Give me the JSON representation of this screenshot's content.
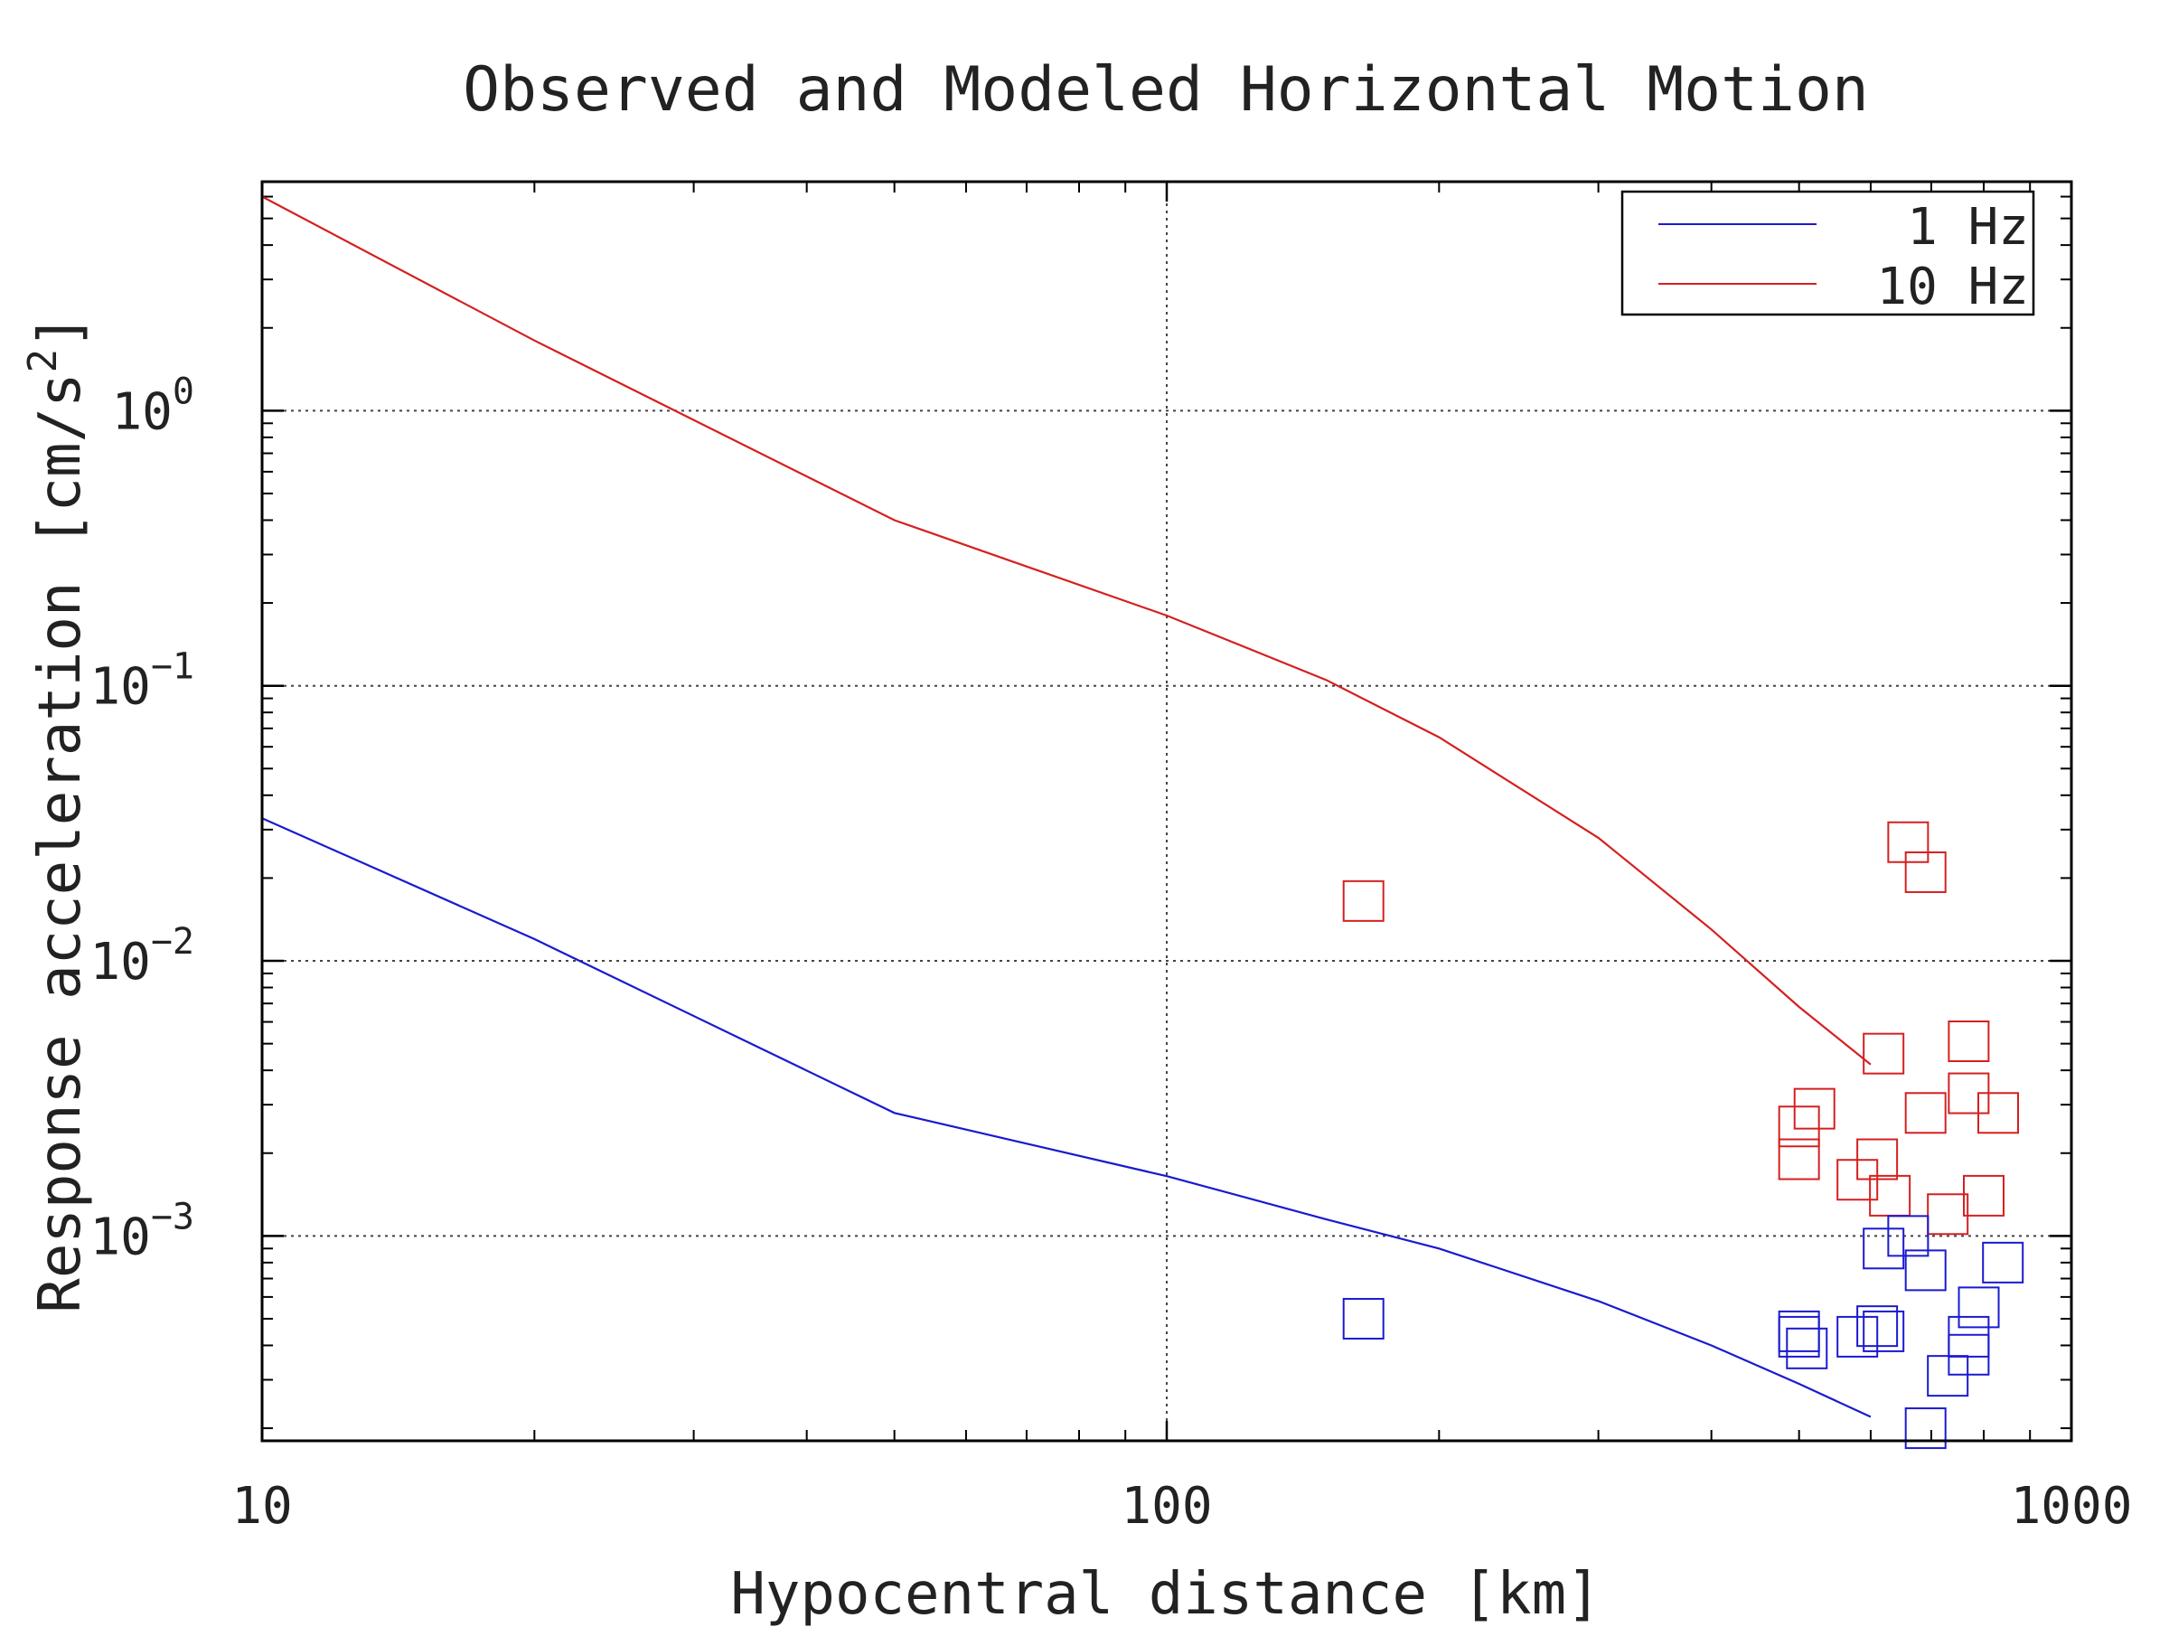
{
  "chart_data": {
    "type": "scatter",
    "title": "Observed and Modeled Horizontal Motion",
    "xlabel": "Hypocentral distance [km]",
    "ylabel": "Response acceleration [cm/s",
    "ylabel_superscript": "2",
    "ylabel_close": "]",
    "xscale": "log",
    "yscale": "log",
    "xlim": [
      10,
      1000
    ],
    "ylim": [
      0.00018,
      6.8
    ],
    "grid": true,
    "x_ticks": [
      {
        "value": 10,
        "label": "10"
      },
      {
        "value": 100,
        "label": "100"
      },
      {
        "value": 1000,
        "label": "1000"
      }
    ],
    "y_ticks": [
      {
        "value": 1,
        "base": "10",
        "exp": "0"
      },
      {
        "value": 0.1,
        "base": "10",
        "exp": "−1"
      },
      {
        "value": 0.01,
        "base": "10",
        "exp": "−2"
      },
      {
        "value": 0.001,
        "base": "10",
        "exp": "−3"
      }
    ],
    "legend": {
      "placement": "top-right",
      "entries": [
        {
          "label": "1 Hz",
          "color": "#1a1ad0"
        },
        {
          "label": "10 Hz",
          "color": "#d42020"
        }
      ]
    },
    "lines": [
      {
        "series": "10 Hz",
        "color": "#d42020",
        "x": [
          10,
          20,
          50,
          100,
          150,
          200,
          300,
          400,
          500,
          600
        ],
        "y": [
          6.0,
          1.8,
          0.4,
          0.18,
          0.105,
          0.065,
          0.028,
          0.013,
          0.0068,
          0.0042
        ]
      },
      {
        "series": "1 Hz",
        "color": "#1a1ad0",
        "x": [
          10,
          20,
          50,
          100,
          150,
          200,
          300,
          400,
          500,
          600
        ],
        "y": [
          0.033,
          0.012,
          0.0028,
          0.00165,
          0.00115,
          0.0009,
          0.00058,
          0.0004,
          0.00029,
          0.00022
        ]
      }
    ],
    "scatter": [
      {
        "series": "10 Hz",
        "color": "#d42020",
        "points": [
          [
            165,
            0.0165
          ],
          [
            660,
            0.027
          ],
          [
            690,
            0.021
          ],
          [
            620,
            0.0046
          ],
          [
            770,
            0.0051
          ],
          [
            500,
            0.0025
          ],
          [
            520,
            0.0029
          ],
          [
            500,
            0.0019
          ],
          [
            690,
            0.0028
          ],
          [
            770,
            0.0033
          ],
          [
            830,
            0.0028
          ],
          [
            610,
            0.0019
          ],
          [
            580,
            0.0016
          ],
          [
            630,
            0.0014
          ],
          [
            730,
            0.0012
          ],
          [
            800,
            0.0014
          ]
        ]
      },
      {
        "series": "1 Hz",
        "color": "#1a1ad0",
        "points": [
          [
            165,
            0.0005
          ],
          [
            660,
            0.001
          ],
          [
            620,
            0.0009
          ],
          [
            690,
            0.00075
          ],
          [
            840,
            0.0008
          ],
          [
            500,
            0.00045
          ],
          [
            500,
            0.00043
          ],
          [
            510,
            0.00039
          ],
          [
            580,
            0.00043
          ],
          [
            610,
            0.00047
          ],
          [
            620,
            0.00045
          ],
          [
            790,
            0.00055
          ],
          [
            770,
            0.00043
          ],
          [
            770,
            0.00037
          ],
          [
            730,
            0.00031
          ],
          [
            690,
            0.0002
          ]
        ]
      }
    ]
  }
}
